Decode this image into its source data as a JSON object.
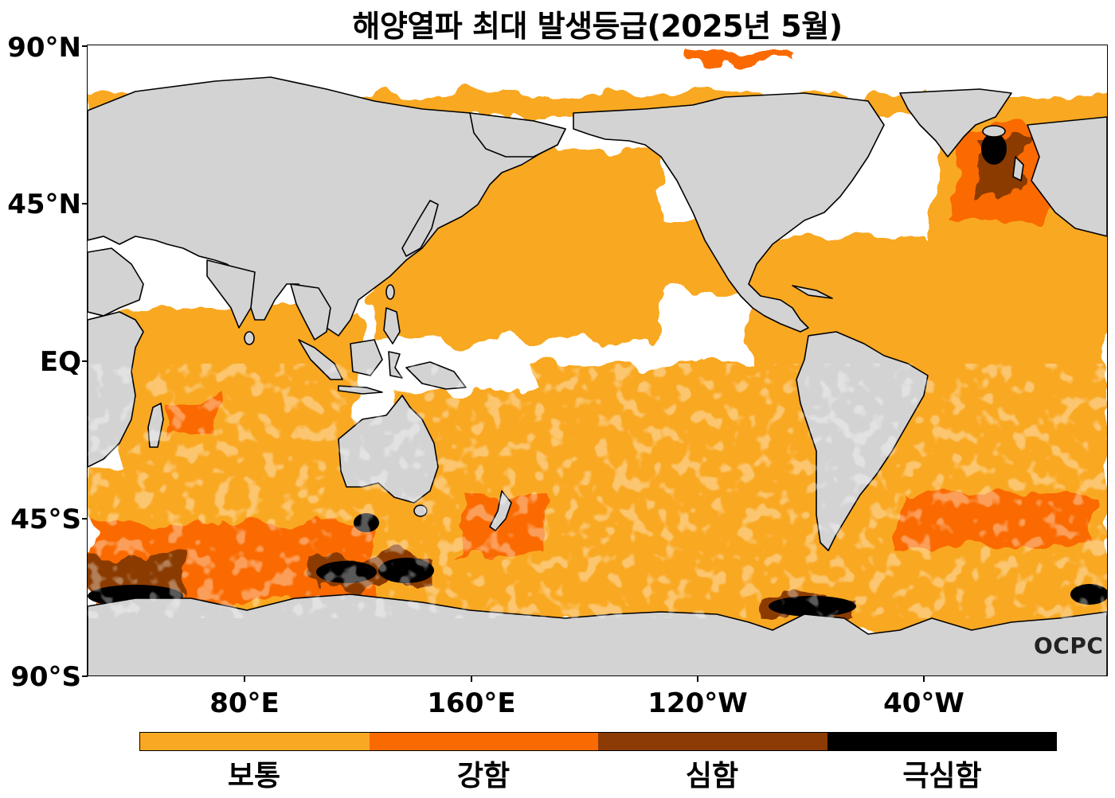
{
  "title": "해양열파 최대 발생등급(2025년 5월)",
  "map": {
    "projection": "PlateCarree",
    "central_longitude": 160,
    "extent": {
      "lon_min": 25,
      "lon_max": 295,
      "lat_min": -90,
      "lat_max": 90
    },
    "land_color": "#d3d3d3",
    "ocean_color": "#ffffff",
    "coastline_color": "#000000"
  },
  "lat_ticks": [
    "90°N",
    "45°N",
    "EQ",
    "45°S",
    "90°S"
  ],
  "lon_ticks": [
    "80°E",
    "160°E",
    "120°W",
    "40°W"
  ],
  "legend": {
    "levels": [
      {
        "label": "보통",
        "color": "#f9a823"
      },
      {
        "label": "강함",
        "color": "#fa6a03"
      },
      {
        "label": "심함",
        "color": "#8b3b03"
      },
      {
        "label": "극심함",
        "color": "#000000"
      }
    ]
  },
  "logo": "OCPC"
}
